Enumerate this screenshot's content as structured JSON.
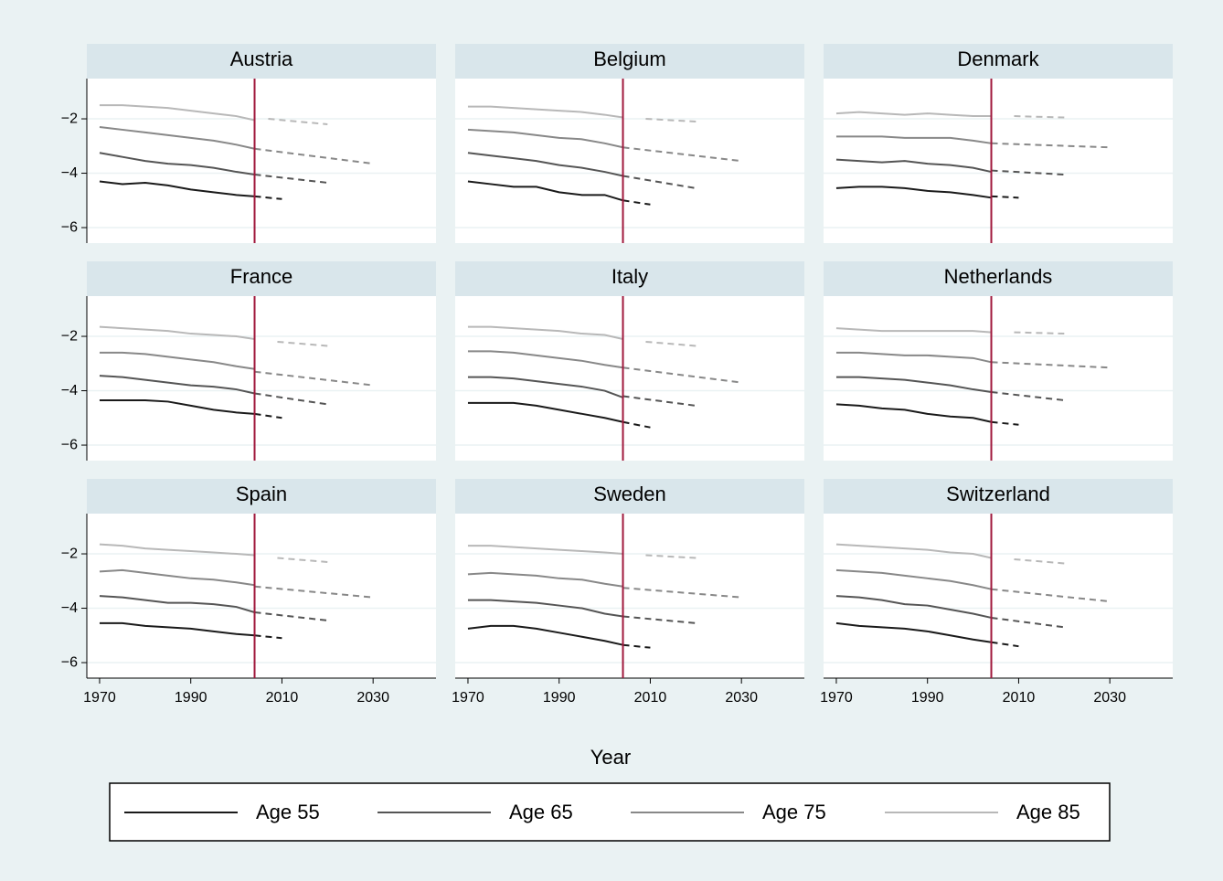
{
  "chart_data": {
    "type": "line",
    "x_label": "Year",
    "xlim": [
      1967.2,
      2043.8
    ],
    "ylim": [
      -6.57,
      -0.52
    ],
    "xticks": [
      1970,
      1990,
      2010,
      2030
    ],
    "yticks": [
      {
        "value": -2,
        "label": "−2"
      },
      {
        "value": -4,
        "label": "−4"
      },
      {
        "value": -6,
        "label": "−6"
      }
    ],
    "grid": true,
    "vline": 2004,
    "vline_color": "#a0183c",
    "x": [
      1970,
      1975,
      1980,
      1985,
      1990,
      1995,
      2000,
      2004
    ],
    "series": [
      {
        "name": "Age 55",
        "color": "#1a1a1a"
      },
      {
        "name": "Age 65",
        "color": "#555555"
      },
      {
        "name": "Age 75",
        "color": "#888888"
      },
      {
        "name": "Age 85",
        "color": "#b8b8b8"
      }
    ],
    "panels": [
      {
        "title": "Austria",
        "series": [
          {
            "values": [
              -4.3,
              -4.4,
              -4.35,
              -4.45,
              -4.6,
              -4.7,
              -4.8,
              -4.85
            ],
            "projection": {
              "x": [
                2004,
                2010
              ],
              "values": [
                -4.85,
                -4.95
              ]
            }
          },
          {
            "values": [
              -3.25,
              -3.4,
              -3.55,
              -3.65,
              -3.7,
              -3.8,
              -3.95,
              -4.05
            ],
            "projection": {
              "x": [
                2004,
                2020
              ],
              "values": [
                -4.05,
                -4.35
              ]
            }
          },
          {
            "values": [
              -2.3,
              -2.4,
              -2.5,
              -2.6,
              -2.7,
              -2.8,
              -2.95,
              -3.1
            ],
            "projection": {
              "x": [
                2004,
                2030
              ],
              "values": [
                -3.1,
                -3.65
              ]
            }
          },
          {
            "values": [
              -1.5,
              -1.5,
              -1.55,
              -1.6,
              -1.7,
              -1.8,
              -1.9,
              -2.05
            ],
            "projection": {
              "x": [
                2007,
                2020
              ],
              "values": [
                -2.0,
                -2.2
              ]
            }
          }
        ]
      },
      {
        "title": "Belgium",
        "series": [
          {
            "values": [
              -4.3,
              -4.4,
              -4.5,
              -4.5,
              -4.7,
              -4.8,
              -4.8,
              -5.0
            ],
            "projection": {
              "x": [
                2004,
                2010
              ],
              "values": [
                -5.0,
                -5.15
              ]
            }
          },
          {
            "values": [
              -3.25,
              -3.35,
              -3.45,
              -3.55,
              -3.7,
              -3.8,
              -3.95,
              -4.1
            ],
            "projection": {
              "x": [
                2004,
                2020
              ],
              "values": [
                -4.1,
                -4.55
              ]
            }
          },
          {
            "values": [
              -2.4,
              -2.45,
              -2.5,
              -2.6,
              -2.7,
              -2.75,
              -2.9,
              -3.05
            ],
            "projection": {
              "x": [
                2004,
                2030
              ],
              "values": [
                -3.05,
                -3.55
              ]
            }
          },
          {
            "values": [
              -1.55,
              -1.55,
              -1.6,
              -1.65,
              -1.7,
              -1.75,
              -1.85,
              -1.95
            ],
            "projection": {
              "x": [
                2009,
                2020
              ],
              "values": [
                -2.0,
                -2.1
              ]
            }
          }
        ]
      },
      {
        "title": "Denmark",
        "series": [
          {
            "values": [
              -4.55,
              -4.5,
              -4.5,
              -4.55,
              -4.65,
              -4.7,
              -4.8,
              -4.9
            ],
            "projection": {
              "x": [
                2004,
                2010
              ],
              "values": [
                -4.85,
                -4.9
              ]
            }
          },
          {
            "values": [
              -3.5,
              -3.55,
              -3.6,
              -3.55,
              -3.65,
              -3.7,
              -3.8,
              -3.95
            ],
            "projection": {
              "x": [
                2004,
                2020
              ],
              "values": [
                -3.9,
                -4.05
              ]
            }
          },
          {
            "values": [
              -2.65,
              -2.65,
              -2.65,
              -2.7,
              -2.7,
              -2.7,
              -2.8,
              -2.9
            ],
            "projection": {
              "x": [
                2004,
                2030
              ],
              "values": [
                -2.9,
                -3.05
              ]
            }
          },
          {
            "values": [
              -1.8,
              -1.75,
              -1.8,
              -1.85,
              -1.8,
              -1.85,
              -1.9,
              -1.9
            ],
            "projection": {
              "x": [
                2009,
                2020
              ],
              "values": [
                -1.9,
                -1.95
              ]
            }
          }
        ]
      },
      {
        "title": "France",
        "series": [
          {
            "values": [
              -4.35,
              -4.35,
              -4.35,
              -4.4,
              -4.55,
              -4.7,
              -4.8,
              -4.85
            ],
            "projection": {
              "x": [
                2004,
                2010
              ],
              "values": [
                -4.85,
                -5.0
              ]
            }
          },
          {
            "values": [
              -3.45,
              -3.5,
              -3.6,
              -3.7,
              -3.8,
              -3.85,
              -3.95,
              -4.1
            ],
            "projection": {
              "x": [
                2004,
                2020
              ],
              "values": [
                -4.1,
                -4.5
              ]
            }
          },
          {
            "values": [
              -2.6,
              -2.6,
              -2.65,
              -2.75,
              -2.85,
              -2.95,
              -3.1,
              -3.2
            ],
            "projection": {
              "x": [
                2004,
                2030
              ],
              "values": [
                -3.3,
                -3.8
              ]
            }
          },
          {
            "values": [
              -1.65,
              -1.7,
              -1.75,
              -1.8,
              -1.9,
              -1.95,
              -2.0,
              -2.1
            ],
            "projection": {
              "x": [
                2009,
                2020
              ],
              "values": [
                -2.2,
                -2.35
              ]
            }
          }
        ]
      },
      {
        "title": "Italy",
        "series": [
          {
            "values": [
              -4.45,
              -4.45,
              -4.45,
              -4.55,
              -4.7,
              -4.85,
              -5.0,
              -5.15
            ],
            "projection": {
              "x": [
                2004,
                2010
              ],
              "values": [
                -5.15,
                -5.35
              ]
            }
          },
          {
            "values": [
              -3.5,
              -3.5,
              -3.55,
              -3.65,
              -3.75,
              -3.85,
              -4.0,
              -4.25
            ],
            "projection": {
              "x": [
                2004,
                2020
              ],
              "values": [
                -4.2,
                -4.55
              ]
            }
          },
          {
            "values": [
              -2.55,
              -2.55,
              -2.6,
              -2.7,
              -2.8,
              -2.9,
              -3.05,
              -3.15
            ],
            "projection": {
              "x": [
                2004,
                2030
              ],
              "values": [
                -3.15,
                -3.7
              ]
            }
          },
          {
            "values": [
              -1.65,
              -1.65,
              -1.7,
              -1.75,
              -1.8,
              -1.9,
              -1.95,
              -2.1
            ],
            "projection": {
              "x": [
                2009,
                2020
              ],
              "values": [
                -2.2,
                -2.35
              ]
            }
          }
        ]
      },
      {
        "title": "Netherlands",
        "series": [
          {
            "values": [
              -4.5,
              -4.55,
              -4.65,
              -4.7,
              -4.85,
              -4.95,
              -5.0,
              -5.15
            ],
            "projection": {
              "x": [
                2004,
                2010
              ],
              "values": [
                -5.15,
                -5.25
              ]
            }
          },
          {
            "values": [
              -3.5,
              -3.5,
              -3.55,
              -3.6,
              -3.7,
              -3.8,
              -3.95,
              -4.05
            ],
            "projection": {
              "x": [
                2004,
                2020
              ],
              "values": [
                -4.05,
                -4.35
              ]
            }
          },
          {
            "values": [
              -2.6,
              -2.6,
              -2.65,
              -2.7,
              -2.7,
              -2.75,
              -2.8,
              -2.95
            ],
            "projection": {
              "x": [
                2004,
                2030
              ],
              "values": [
                -2.95,
                -3.15
              ]
            }
          },
          {
            "values": [
              -1.7,
              -1.75,
              -1.8,
              -1.8,
              -1.8,
              -1.8,
              -1.8,
              -1.85
            ],
            "projection": {
              "x": [
                2009,
                2020
              ],
              "values": [
                -1.85,
                -1.9
              ]
            }
          }
        ]
      },
      {
        "title": "Spain",
        "series": [
          {
            "values": [
              -4.55,
              -4.55,
              -4.65,
              -4.7,
              -4.75,
              -4.85,
              -4.95,
              -5.0
            ],
            "projection": {
              "x": [
                2004,
                2010
              ],
              "values": [
                -5.0,
                -5.1
              ]
            }
          },
          {
            "values": [
              -3.55,
              -3.6,
              -3.7,
              -3.8,
              -3.8,
              -3.85,
              -3.95,
              -4.15
            ],
            "projection": {
              "x": [
                2004,
                2020
              ],
              "values": [
                -4.15,
                -4.45
              ]
            }
          },
          {
            "values": [
              -2.65,
              -2.6,
              -2.7,
              -2.8,
              -2.9,
              -2.95,
              -3.05,
              -3.15
            ],
            "projection": {
              "x": [
                2004,
                2030
              ],
              "values": [
                -3.2,
                -3.6
              ]
            }
          },
          {
            "values": [
              -1.65,
              -1.7,
              -1.8,
              -1.85,
              -1.9,
              -1.95,
              -2.0,
              -2.05
            ],
            "projection": {
              "x": [
                2009,
                2020
              ],
              "values": [
                -2.15,
                -2.3
              ]
            }
          }
        ]
      },
      {
        "title": "Sweden",
        "series": [
          {
            "values": [
              -4.75,
              -4.65,
              -4.65,
              -4.75,
              -4.9,
              -5.05,
              -5.2,
              -5.35
            ],
            "projection": {
              "x": [
                2004,
                2010
              ],
              "values": [
                -5.35,
                -5.45
              ]
            }
          },
          {
            "values": [
              -3.7,
              -3.7,
              -3.75,
              -3.8,
              -3.9,
              -4.0,
              -4.2,
              -4.3
            ],
            "projection": {
              "x": [
                2004,
                2020
              ],
              "values": [
                -4.3,
                -4.55
              ]
            }
          },
          {
            "values": [
              -2.75,
              -2.7,
              -2.75,
              -2.8,
              -2.9,
              -2.95,
              -3.1,
              -3.2
            ],
            "projection": {
              "x": [
                2004,
                2030
              ],
              "values": [
                -3.25,
                -3.6
              ]
            }
          },
          {
            "values": [
              -1.7,
              -1.7,
              -1.75,
              -1.8,
              -1.85,
              -1.9,
              -1.95,
              -2.0
            ],
            "projection": {
              "x": [
                2009,
                2020
              ],
              "values": [
                -2.05,
                -2.15
              ]
            }
          }
        ]
      },
      {
        "title": "Switzerland",
        "series": [
          {
            "values": [
              -4.55,
              -4.65,
              -4.7,
              -4.75,
              -4.85,
              -5.0,
              -5.15,
              -5.25
            ],
            "projection": {
              "x": [
                2004,
                2010
              ],
              "values": [
                -5.25,
                -5.4
              ]
            }
          },
          {
            "values": [
              -3.55,
              -3.6,
              -3.7,
              -3.85,
              -3.9,
              -4.05,
              -4.2,
              -4.35
            ],
            "projection": {
              "x": [
                2004,
                2020
              ],
              "values": [
                -4.35,
                -4.7
              ]
            }
          },
          {
            "values": [
              -2.6,
              -2.65,
              -2.7,
              -2.8,
              -2.9,
              -3.0,
              -3.15,
              -3.3
            ],
            "projection": {
              "x": [
                2004,
                2030
              ],
              "values": [
                -3.3,
                -3.75
              ]
            }
          },
          {
            "values": [
              -1.65,
              -1.7,
              -1.75,
              -1.8,
              -1.85,
              -1.95,
              -2.0,
              -2.15
            ],
            "projection": {
              "x": [
                2009,
                2020
              ],
              "values": [
                -2.2,
                -2.35
              ]
            }
          }
        ]
      }
    ]
  }
}
